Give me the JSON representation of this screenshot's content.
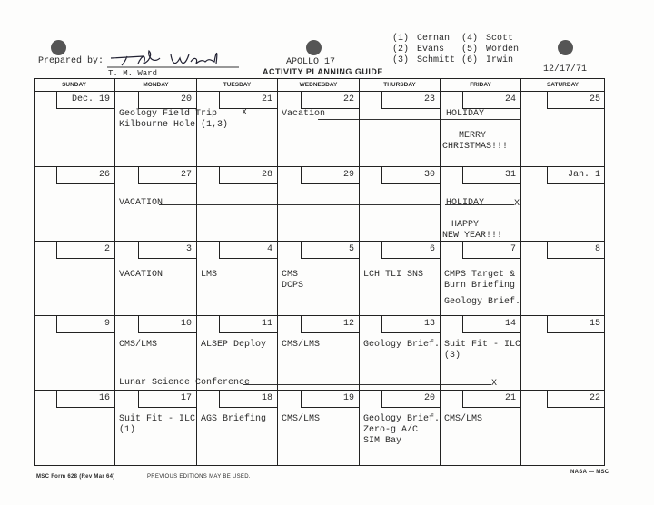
{
  "header": {
    "prepared_by_label": "Prepared by:",
    "signature": "TM Ward",
    "preparer_name": "T. M. Ward",
    "program": "APOLLO 17",
    "title": "ACTIVITY PLANNING GUIDE",
    "date": "12/17/71"
  },
  "crew_legend": [
    {
      "num": "(1)",
      "name": "Cernan"
    },
    {
      "num": "(2)",
      "name": "Evans"
    },
    {
      "num": "(3)",
      "name": "Schmitt"
    },
    {
      "num": "(4)",
      "name": "Scott"
    },
    {
      "num": "(5)",
      "name": "Worden"
    },
    {
      "num": "(6)",
      "name": "Irwin"
    }
  ],
  "weekdays": [
    "SUNDAY",
    "MONDAY",
    "TUESDAY",
    "WEDNESDAY",
    "THURSDAY",
    "FRIDAY",
    "SATURDAY"
  ],
  "weeks": [
    {
      "dates": [
        "Dec. 19",
        "20",
        "21",
        "22",
        "23",
        "24",
        "25"
      ]
    },
    {
      "dates": [
        "26",
        "27",
        "28",
        "29",
        "30",
        "31",
        "Jan. 1"
      ]
    },
    {
      "dates": [
        "2",
        "3",
        "4",
        "5",
        "6",
        "7",
        "8"
      ]
    },
    {
      "dates": [
        "9",
        "10",
        "11",
        "12",
        "13",
        "14",
        "15"
      ]
    },
    {
      "dates": [
        "16",
        "17",
        "18",
        "19",
        "20",
        "21",
        "22"
      ]
    }
  ],
  "entries": [
    {
      "week": 0,
      "day": 1,
      "text": "Geology Field Trip"
    },
    {
      "week": 0,
      "day": 1,
      "text": "Kilbourne Hole  (1,3)"
    },
    {
      "week": 0,
      "day": 3,
      "text": "Vacation"
    },
    {
      "week": 0,
      "day": 5,
      "text": "HOLIDAY"
    },
    {
      "week": 0,
      "day": 5,
      "text": "MERRY"
    },
    {
      "week": 0,
      "day": 5,
      "text": "CHRISTMAS!!!"
    },
    {
      "week": 1,
      "day": 1,
      "text": "VACATION"
    },
    {
      "week": 1,
      "day": 5,
      "text": "HOLIDAY"
    },
    {
      "week": 1,
      "day": 5,
      "text": "HAPPY"
    },
    {
      "week": 1,
      "day": 5,
      "text": "NEW YEAR!!!"
    },
    {
      "week": 2,
      "day": 1,
      "text": "VACATION"
    },
    {
      "week": 2,
      "day": 2,
      "text": "LMS"
    },
    {
      "week": 2,
      "day": 3,
      "text": "CMS"
    },
    {
      "week": 2,
      "day": 3,
      "text": "DCPS"
    },
    {
      "week": 2,
      "day": 4,
      "text": "LCH TLI SNS"
    },
    {
      "week": 2,
      "day": 5,
      "text": "CMPS Target &"
    },
    {
      "week": 2,
      "day": 5,
      "text": "Burn Briefing"
    },
    {
      "week": 2,
      "day": 5,
      "text": "Geology Brief."
    },
    {
      "week": 3,
      "day": 1,
      "text": "CMS/LMS"
    },
    {
      "week": 3,
      "day": 2,
      "text": "ALSEP Deploy"
    },
    {
      "week": 3,
      "day": 3,
      "text": "CMS/LMS"
    },
    {
      "week": 3,
      "day": 4,
      "text": "Geology Brief."
    },
    {
      "week": 3,
      "day": 5,
      "text": "Suit Fit - ILC"
    },
    {
      "week": 3,
      "day": 5,
      "text": "(3)"
    },
    {
      "week": 3,
      "day": 1,
      "text": "Lunar Science Conference"
    },
    {
      "week": 4,
      "day": 1,
      "text": "Suit Fit - ILC"
    },
    {
      "week": 4,
      "day": 1,
      "text": "(1)"
    },
    {
      "week": 4,
      "day": 2,
      "text": "AGS Briefing"
    },
    {
      "week": 4,
      "day": 3,
      "text": "CMS/LMS"
    },
    {
      "week": 4,
      "day": 4,
      "text": "Geology Brief."
    },
    {
      "week": 4,
      "day": 4,
      "text": "Zero-g A/C"
    },
    {
      "week": 4,
      "day": 4,
      "text": "SIM Bay"
    },
    {
      "week": 4,
      "day": 5,
      "text": "CMS/LMS"
    }
  ],
  "span_end_marks": [
    "X",
    "X",
    "X"
  ],
  "footer": {
    "form": "MSC Form 628 (Rev Mar 64)",
    "note": "PREVIOUS EDITIONS MAY BE USED.",
    "agency": "NASA — MSC"
  }
}
